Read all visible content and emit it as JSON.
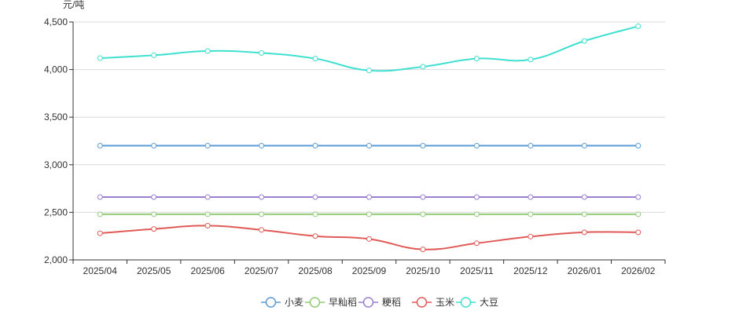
{
  "chart_data": {
    "type": "line",
    "unit_label": "元/吨",
    "categories": [
      "2025/04",
      "2025/05",
      "2025/06",
      "2025/07",
      "2025/08",
      "2025/09",
      "2025/10",
      "2025/11",
      "2025/12",
      "2026/01",
      "2026/02"
    ],
    "ylim": [
      2000,
      4500
    ],
    "yticks": [
      2000,
      2500,
      3000,
      3500,
      4000,
      4500
    ],
    "ytick_labels": [
      "2,000",
      "2,500",
      "3,000",
      "3,500",
      "4,000",
      "4,500"
    ],
    "grid": true,
    "legend_position": "bottom",
    "series": [
      {
        "name": "小麦",
        "color": "#5b9bd5",
        "values": [
          3200,
          3200,
          3200,
          3200,
          3200,
          3200,
          3200,
          3200,
          3200,
          3200,
          3200
        ]
      },
      {
        "name": "早籼稻",
        "color": "#91cc75",
        "values": [
          2480,
          2480,
          2480,
          2480,
          2480,
          2480,
          2480,
          2480,
          2480,
          2480,
          2480
        ]
      },
      {
        "name": "粳稻",
        "color": "#9a7fd1",
        "values": [
          2660,
          2660,
          2660,
          2660,
          2660,
          2660,
          2660,
          2660,
          2660,
          2660,
          2660
        ]
      },
      {
        "name": "玉米",
        "color": "#e05a57",
        "values": [
          2280,
          2325,
          2360,
          2315,
          2250,
          2220,
          2110,
          2175,
          2245,
          2290,
          2290
        ]
      },
      {
        "name": "大豆",
        "color": "#40e0d0",
        "values": [
          4120,
          4150,
          4195,
          4175,
          4115,
          3990,
          4030,
          4115,
          4105,
          4300,
          4455
        ]
      }
    ]
  }
}
